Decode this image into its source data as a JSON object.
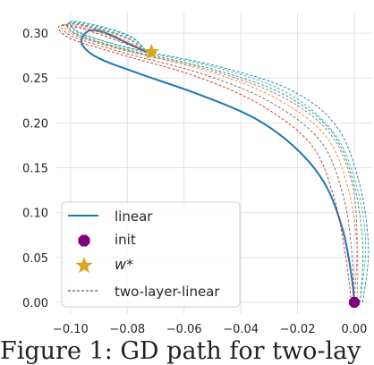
{
  "chart_data": {
    "type": "line",
    "title": "",
    "xlabel": "",
    "ylabel": "",
    "xlim": [
      -0.105,
      0.006
    ],
    "ylim": [
      -0.013,
      0.323
    ],
    "x_ticks": [
      -0.1,
      -0.08,
      -0.06,
      -0.04,
      -0.02,
      0.0
    ],
    "x_tick_labels": [
      "−0.10",
      "−0.08",
      "−0.06",
      "−0.04",
      "−0.02",
      "0.00"
    ],
    "y_ticks": [
      0.0,
      0.05,
      0.1,
      0.15,
      0.2,
      0.25,
      0.3
    ],
    "y_tick_labels": [
      "0.00",
      "0.05",
      "0.10",
      "0.15",
      "0.20",
      "0.25",
      "0.30"
    ],
    "grid": true,
    "legend_position": "lower-left",
    "series": [
      {
        "name": "linear",
        "style": "solid",
        "color": "#1f77b4",
        "points": [
          [
            0.0,
            0.0
          ],
          [
            -0.001,
            0.03
          ],
          [
            -0.004,
            0.08
          ],
          [
            -0.01,
            0.13
          ],
          [
            -0.02,
            0.17
          ],
          [
            -0.035,
            0.205
          ],
          [
            -0.055,
            0.232
          ],
          [
            -0.075,
            0.254
          ],
          [
            -0.09,
            0.272
          ],
          [
            -0.096,
            0.288
          ],
          [
            -0.094,
            0.302
          ],
          [
            -0.089,
            0.302
          ],
          [
            -0.082,
            0.292
          ],
          [
            -0.076,
            0.283
          ],
          [
            -0.073,
            0.279
          ]
        ]
      },
      {
        "name": "two-layer-linear",
        "style": "dashed",
        "color": "#333333",
        "variants": [
          {
            "color": "#2ca02c",
            "points": [
              [
                0.002,
                0.0
              ],
              [
                0.003,
                0.06
              ],
              [
                0.0,
                0.13
              ],
              [
                -0.008,
                0.19
              ],
              [
                -0.025,
                0.232
              ],
              [
                -0.05,
                0.26
              ],
              [
                -0.078,
                0.28
              ],
              [
                -0.097,
                0.298
              ],
              [
                -0.101,
                0.311
              ],
              [
                -0.092,
                0.307
              ],
              [
                -0.08,
                0.295
              ],
              [
                -0.073,
                0.279
              ]
            ]
          },
          {
            "color": "#ff7f0e",
            "points": [
              [
                0.001,
                0.0
              ],
              [
                0.001,
                0.06
              ],
              [
                -0.002,
                0.125
              ],
              [
                -0.01,
                0.185
              ],
              [
                -0.028,
                0.228
              ],
              [
                -0.052,
                0.258
              ],
              [
                -0.079,
                0.279
              ],
              [
                -0.098,
                0.297
              ],
              [
                -0.102,
                0.31
              ],
              [
                -0.093,
                0.306
              ],
              [
                -0.081,
                0.293
              ],
              [
                -0.073,
                0.279
              ]
            ]
          },
          {
            "color": "#8c564b",
            "points": [
              [
                0.0,
                0.0
              ],
              [
                -0.001,
                0.06
              ],
              [
                -0.004,
                0.12
              ],
              [
                -0.012,
                0.18
              ],
              [
                -0.03,
                0.224
              ],
              [
                -0.054,
                0.255
              ],
              [
                -0.08,
                0.277
              ],
              [
                -0.099,
                0.296
              ],
              [
                -0.103,
                0.309
              ],
              [
                -0.094,
                0.305
              ],
              [
                -0.082,
                0.292
              ],
              [
                -0.073,
                0.279
              ]
            ]
          },
          {
            "color": "#1f77b4",
            "points": [
              [
                0.003,
                0.0
              ],
              [
                0.005,
                0.06
              ],
              [
                0.002,
                0.13
              ],
              [
                -0.006,
                0.195
              ],
              [
                -0.022,
                0.236
              ],
              [
                -0.048,
                0.263
              ],
              [
                -0.077,
                0.282
              ],
              [
                -0.096,
                0.299
              ],
              [
                -0.1,
                0.312
              ],
              [
                -0.091,
                0.308
              ],
              [
                -0.079,
                0.296
              ],
              [
                -0.073,
                0.279
              ]
            ]
          },
          {
            "color": "#d62728",
            "points": [
              [
                -0.001,
                0.0
              ],
              [
                -0.003,
                0.05
              ],
              [
                -0.007,
                0.115
              ],
              [
                -0.015,
                0.175
              ],
              [
                -0.033,
                0.22
              ],
              [
                -0.056,
                0.252
              ],
              [
                -0.081,
                0.275
              ],
              [
                -0.1,
                0.294
              ],
              [
                -0.104,
                0.308
              ],
              [
                -0.095,
                0.304
              ],
              [
                -0.083,
                0.291
              ],
              [
                -0.073,
                0.279
              ]
            ]
          },
          {
            "color": "#9467bd",
            "points": [
              [
                0.0,
                0.0
              ],
              [
                0.001,
                0.07
              ],
              [
                -0.001,
                0.135
              ],
              [
                -0.009,
                0.19
              ],
              [
                -0.026,
                0.23
              ],
              [
                -0.051,
                0.259
              ],
              [
                -0.078,
                0.279
              ],
              [
                -0.097,
                0.297
              ],
              [
                -0.101,
                0.31
              ],
              [
                -0.092,
                0.306
              ],
              [
                -0.08,
                0.294
              ],
              [
                -0.073,
                0.279
              ]
            ]
          },
          {
            "color": "#17becf",
            "points": [
              [
                0.002,
                0.0
              ],
              [
                0.004,
                0.065
              ],
              [
                0.001,
                0.128
              ],
              [
                -0.007,
                0.188
              ],
              [
                -0.024,
                0.234
              ],
              [
                -0.049,
                0.262
              ],
              [
                -0.077,
                0.281
              ],
              [
                -0.096,
                0.3
              ],
              [
                -0.1,
                0.313
              ],
              [
                -0.091,
                0.309
              ],
              [
                -0.079,
                0.297
              ],
              [
                -0.073,
                0.279
              ]
            ]
          }
        ]
      },
      {
        "name": "init",
        "style": "marker",
        "marker": "octagon",
        "color": "#800080",
        "points": [
          [
            0.0,
            0.0
          ]
        ]
      },
      {
        "name": "w*",
        "style": "marker",
        "marker": "star",
        "color": "#DAA520",
        "points": [
          [
            -0.0715,
            0.279
          ]
        ]
      }
    ],
    "legend": [
      {
        "label": "linear",
        "kind": "line",
        "color": "#1f77b4"
      },
      {
        "label": "init",
        "kind": "octagon",
        "color": "#800080"
      },
      {
        "label": "w*",
        "kind": "star",
        "color": "#DAA520"
      },
      {
        "label": "two-layer-linear",
        "kind": "dashed",
        "color": "#333333"
      }
    ]
  },
  "caption": "Figure 1: GD path for two-lay"
}
